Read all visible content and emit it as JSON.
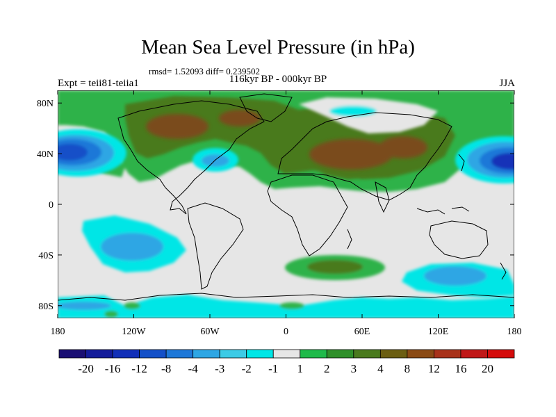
{
  "title": "Mean Sea Level Pressure (in hPa)",
  "stats": "rmsd= 1.52093 diff= 0.239502",
  "left_label": "Expt = teii81-teiia1",
  "center_label": "116kyr BP - 000kyr BP",
  "right_label": "JJA",
  "lon_ticks": [
    "180",
    "120W",
    "60W",
    "0",
    "60E",
    "120E",
    "180"
  ],
  "lat_ticks": [
    "80N",
    "40N",
    "0",
    "40S",
    "80S"
  ],
  "colorbar": {
    "labels": [
      "-20",
      "-16",
      "-12",
      "-8",
      "-4",
      "-3",
      "-2",
      "-1",
      "1",
      "2",
      "3",
      "4",
      "8",
      "12",
      "16",
      "20"
    ],
    "colors": [
      "#1a0f73",
      "#141c9a",
      "#1230b8",
      "#1450c8",
      "#1e78d8",
      "#2ea6e4",
      "#3ccbe6",
      "#00e6e6",
      "#e6e6e6",
      "#1fba4a",
      "#2f8f2a",
      "#4a7a1e",
      "#6b5e12",
      "#8a4a14",
      "#a8321a",
      "#c01818",
      "#d40c0c"
    ]
  },
  "map_colors": {
    "ocean_bg": "#e6e6e6",
    "positive_light": "#2db24a",
    "positive_mid": "#4a7a1e",
    "positive_strong": "#7a4c1a",
    "negative_light": "#00e6e6",
    "negative_mid": "#2ea6e4",
    "negative_strong": "#1450c8",
    "negative_deep": "#1230b8"
  }
}
